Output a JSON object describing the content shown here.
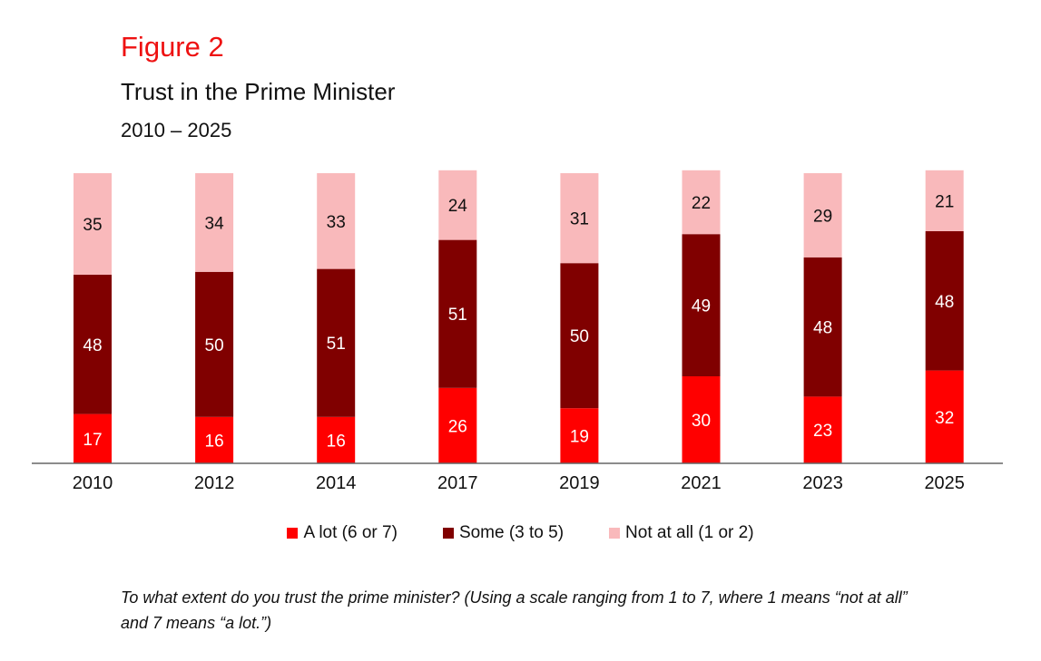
{
  "figure_label": "Figure 2",
  "colors": {
    "a_lot": "#ff0000",
    "some": "#800000",
    "not_at_all": "#f9b9bb",
    "axis": "#666666"
  },
  "footnote": "To what extent do you trust the prime minister? (Using a scale ranging from 1 to 7, where 1 means “not at all” and 7 means “a lot.”)",
  "chart_data": {
    "type": "bar",
    "stacked": true,
    "title": "Trust in the Prime Minister",
    "subtitle": "2010 – 2025",
    "categories": [
      "2010",
      "2012",
      "2014",
      "2017",
      "2019",
      "2021",
      "2023",
      "2025"
    ],
    "series": [
      {
        "name": "A lot (6 or 7)",
        "values": [
          17,
          16,
          16,
          26,
          19,
          30,
          23,
          32
        ]
      },
      {
        "name": "Some (3 to 5)",
        "values": [
          48,
          50,
          51,
          51,
          50,
          49,
          48,
          48
        ]
      },
      {
        "name": "Not at all (1 or 2)",
        "values": [
          35,
          34,
          33,
          24,
          31,
          22,
          29,
          21
        ]
      }
    ],
    "ylim": [
      0,
      100
    ],
    "grid": false,
    "legend": "bottom",
    "data_labels": true
  }
}
